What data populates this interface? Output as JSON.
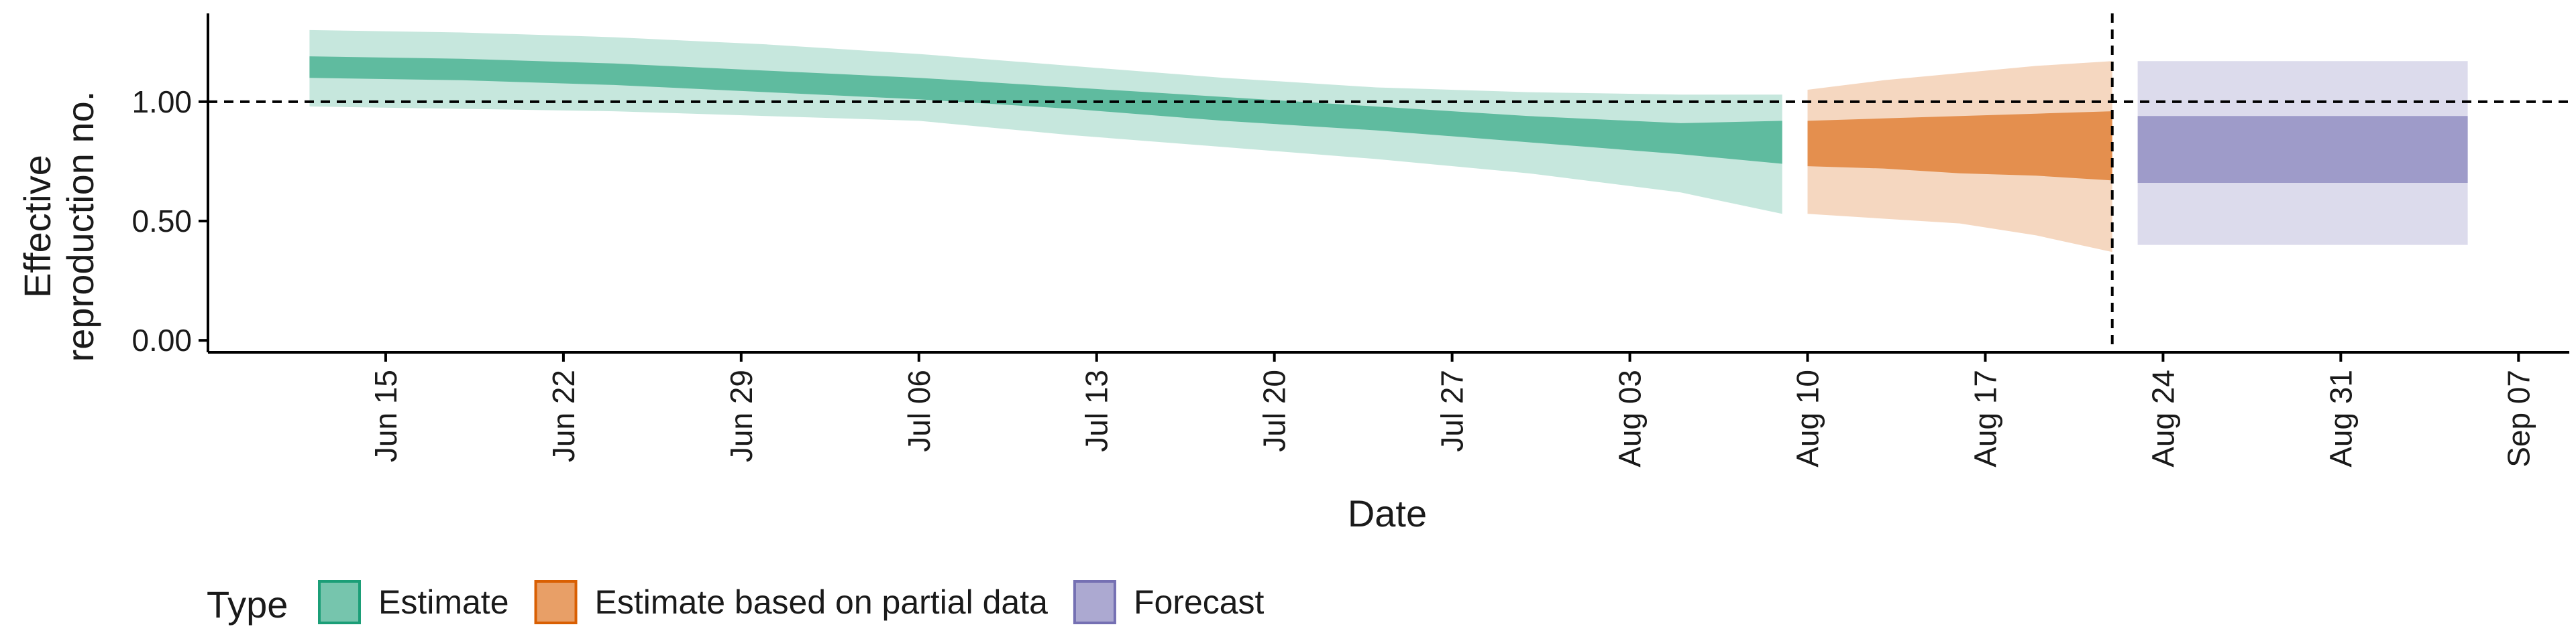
{
  "chart_data": {
    "type": "area",
    "xlabel": "Date",
    "ylabel_lines": [
      "Effective",
      "reproduction no."
    ],
    "year": 2020,
    "x_range": [
      "2020-06-08",
      "2020-09-09"
    ],
    "ylim": [
      -0.05,
      1.37
    ],
    "y_ticks": [
      0.0,
      0.5,
      1.0
    ],
    "y_tick_labels": [
      "0.00",
      "0.50",
      "1.00"
    ],
    "x_ticks": [
      "2020-06-15",
      "2020-06-22",
      "2020-06-29",
      "2020-07-06",
      "2020-07-13",
      "2020-07-20",
      "2020-07-27",
      "2020-08-03",
      "2020-08-10",
      "2020-08-17",
      "2020-08-24",
      "2020-08-31",
      "2020-09-07"
    ],
    "x_tick_labels": [
      "Jun 15",
      "Jun 22",
      "Jun 29",
      "Jul 06",
      "Jul 13",
      "Jul 20",
      "Jul 27",
      "Aug 03",
      "Aug 10",
      "Aug 17",
      "Aug 24",
      "Aug 31",
      "Sep 07"
    ],
    "reference_hline": 1.0,
    "reference_vline": "2020-08-22",
    "grid": false,
    "legend": {
      "title": "Type",
      "position": "bottom"
    },
    "series": [
      {
        "name": "Estimate",
        "color": "#1b9e77",
        "dates": [
          "2020-06-12",
          "2020-06-18",
          "2020-06-24",
          "2020-06-30",
          "2020-07-06",
          "2020-07-12",
          "2020-07-18",
          "2020-07-24",
          "2020-07-30",
          "2020-08-05",
          "2020-08-09"
        ],
        "outer_lower": [
          0.98,
          0.97,
          0.96,
          0.94,
          0.92,
          0.86,
          0.81,
          0.76,
          0.7,
          0.62,
          0.53
        ],
        "outer_upper": [
          1.3,
          1.29,
          1.27,
          1.24,
          1.2,
          1.15,
          1.1,
          1.06,
          1.04,
          1.03,
          1.03
        ],
        "inner_lower": [
          1.1,
          1.09,
          1.07,
          1.04,
          1.01,
          0.97,
          0.92,
          0.88,
          0.83,
          0.78,
          0.74
        ],
        "inner_upper": [
          1.19,
          1.18,
          1.16,
          1.13,
          1.1,
          1.06,
          1.02,
          0.98,
          0.94,
          0.91,
          0.92
        ]
      },
      {
        "name": "Estimate based on partial data",
        "color": "#d95f02",
        "dates": [
          "2020-08-10",
          "2020-08-13",
          "2020-08-16",
          "2020-08-19",
          "2020-08-22"
        ],
        "outer_lower": [
          0.53,
          0.51,
          0.49,
          0.44,
          0.37
        ],
        "outer_upper": [
          1.05,
          1.09,
          1.12,
          1.15,
          1.17
        ],
        "inner_lower": [
          0.73,
          0.72,
          0.7,
          0.69,
          0.67
        ],
        "inner_upper": [
          0.92,
          0.93,
          0.94,
          0.95,
          0.96
        ]
      },
      {
        "name": "Forecast",
        "color": "#7570b3",
        "dates": [
          "2020-08-23",
          "2020-09-05"
        ],
        "outer_lower": [
          0.4,
          0.4
        ],
        "outer_upper": [
          1.17,
          1.17
        ],
        "inner_lower": [
          0.66,
          0.66
        ],
        "inner_upper": [
          0.94,
          0.94
        ]
      }
    ]
  }
}
